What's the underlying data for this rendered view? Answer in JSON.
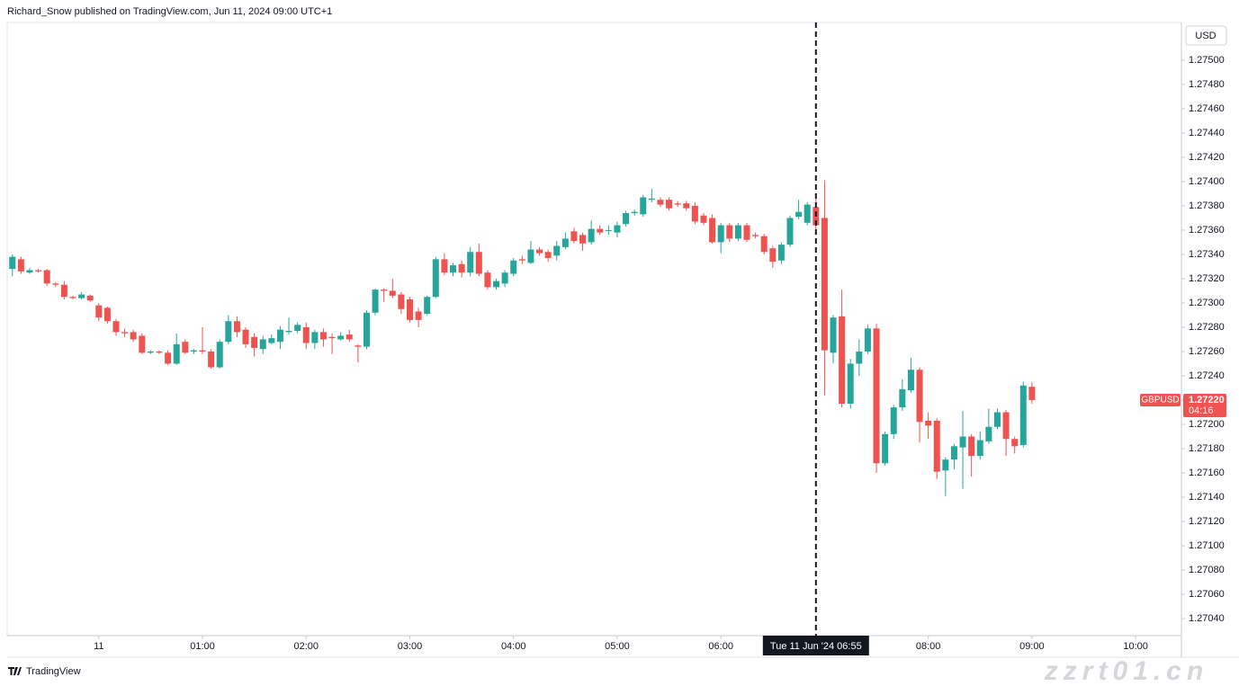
{
  "chart_data": {
    "type": "candlestick",
    "header": "Richard_Snow published on TradingView.com, Jun 11, 2024 09:00 UTC+1",
    "currency": "USD",
    "symbol": "GBPUSD",
    "brand": "TradingView",
    "watermark": "zzrt01.cn",
    "up_color": "#26a69a",
    "down_color": "#ef5350",
    "grid": false,
    "last_price": {
      "value": 1.2722,
      "label": "1.27220"
    },
    "countdown": "04:16",
    "crosshair": {
      "x": 93,
      "label": "Tue 11 Jun '24  06:55"
    },
    "xlim": [
      -0.6,
      135.3
    ],
    "xticks": [
      {
        "value": 10,
        "label": "11"
      },
      {
        "value": 22,
        "label": "01:00"
      },
      {
        "value": 34,
        "label": "02:00"
      },
      {
        "value": 46,
        "label": "03:00"
      },
      {
        "value": 58,
        "label": "04:00"
      },
      {
        "value": 70,
        "label": "05:00"
      },
      {
        "value": 82,
        "label": "06:00"
      },
      {
        "value": 106,
        "label": "08:00"
      },
      {
        "value": 118,
        "label": "09:00"
      },
      {
        "value": 130,
        "label": "10:00"
      }
    ],
    "ylim": [
      1.27026,
      1.27531
    ],
    "yticks": [
      {
        "value": 1.275,
        "label": "1.27500"
      },
      {
        "value": 1.2748,
        "label": "1.27480"
      },
      {
        "value": 1.2746,
        "label": "1.27460"
      },
      {
        "value": 1.2744,
        "label": "1.27440"
      },
      {
        "value": 1.2742,
        "label": "1.27420"
      },
      {
        "value": 1.274,
        "label": "1.27400"
      },
      {
        "value": 1.2738,
        "label": "1.27380"
      },
      {
        "value": 1.2736,
        "label": "1.27360"
      },
      {
        "value": 1.2734,
        "label": "1.27340"
      },
      {
        "value": 1.2732,
        "label": "1.27320"
      },
      {
        "value": 1.273,
        "label": "1.27300"
      },
      {
        "value": 1.2728,
        "label": "1.27280"
      },
      {
        "value": 1.2726,
        "label": "1.27260"
      },
      {
        "value": 1.2724,
        "label": "1.27240"
      },
      {
        "value": 1.2722,
        "label": "1.27220"
      },
      {
        "value": 1.272,
        "label": "1.27200"
      },
      {
        "value": 1.2718,
        "label": "1.27180"
      },
      {
        "value": 1.2716,
        "label": "1.27160"
      },
      {
        "value": 1.2714,
        "label": "1.27140"
      },
      {
        "value": 1.2712,
        "label": "1.27120"
      },
      {
        "value": 1.271,
        "label": "1.27100"
      },
      {
        "value": 1.2708,
        "label": "1.27080"
      },
      {
        "value": 1.2706,
        "label": "1.27060"
      },
      {
        "value": 1.2704,
        "label": "1.27040"
      }
    ],
    "open": [
      1.27328,
      1.27336,
      1.27325,
      1.27327,
      1.27327,
      1.27316,
      1.27315,
      1.27305,
      1.27304,
      1.27306,
      1.27298,
      1.27296,
      1.27285,
      1.27276,
      1.27276,
      1.27273,
      1.27259,
      1.2726,
      1.27259,
      1.2725,
      1.27268,
      1.2726,
      1.27261,
      1.2726,
      1.27247,
      1.27268,
      1.27285,
      1.27278,
      1.27272,
      1.27262,
      1.27267,
      1.27268,
      1.27276,
      1.27277,
      1.2728,
      1.27267,
      1.27276,
      1.27272,
      1.2727,
      1.27274,
      1.27265,
      1.27264,
      1.27292,
      1.27311,
      1.2731,
      1.27307,
      1.27303,
      1.27293,
      1.27291,
      1.27305,
      1.27336,
      1.27325,
      1.27332,
      1.27325,
      1.27342,
      1.27325,
      1.27313,
      1.27316,
      1.27324,
      1.27336,
      1.27333,
      1.27344,
      1.27342,
      1.27339,
      1.27346,
      1.27359,
      1.27356,
      1.2735,
      1.27361,
      1.2736,
      1.27358,
      1.27365,
      1.27374,
      1.27373,
      1.27385,
      1.27385,
      1.27385,
      1.27382,
      1.27382,
      1.2738,
      1.27372,
      1.2737,
      1.2735,
      1.27364,
      1.27353,
      1.27364,
      1.27356,
      1.27355,
      1.27345,
      1.27335,
      1.27348,
      1.27371,
      1.27366,
      1.27379,
      1.2737,
      1.27259,
      1.27289,
      1.27217,
      1.2725,
      1.2726,
      1.27279,
      1.27168,
      1.27192,
      1.27214,
      1.27228,
      1.27245,
      1.27203,
      1.27203,
      1.27162,
      1.27171,
      1.27181,
      1.2719,
      1.27174,
      1.27186,
      1.27198,
      1.2721,
      1.27188,
      1.27183,
      1.27231
    ],
    "high": [
      1.2734,
      1.27338,
      1.27329,
      1.27328,
      1.27328,
      1.27317,
      1.27318,
      1.27306,
      1.27309,
      1.27307,
      1.273,
      1.27297,
      1.27287,
      1.27279,
      1.27278,
      1.27275,
      1.27261,
      1.27261,
      1.27261,
      1.27275,
      1.2727,
      1.27262,
      1.2728,
      1.27262,
      1.2727,
      1.2729,
      1.27289,
      1.2728,
      1.27275,
      1.27273,
      1.27274,
      1.27281,
      1.27288,
      1.27284,
      1.27284,
      1.27278,
      1.27279,
      1.27275,
      1.27276,
      1.27278,
      1.27266,
      1.27294,
      1.27312,
      1.27312,
      1.2732,
      1.27309,
      1.27305,
      1.27296,
      1.27306,
      1.27338,
      1.27341,
      1.27333,
      1.27335,
      1.27346,
      1.27349,
      1.27327,
      1.2732,
      1.27327,
      1.27337,
      1.27339,
      1.27351,
      1.27346,
      1.27344,
      1.27351,
      1.27358,
      1.27362,
      1.27358,
      1.27368,
      1.27364,
      1.27364,
      1.27367,
      1.27376,
      1.27377,
      1.27389,
      1.27394,
      1.27387,
      1.27387,
      1.27384,
      1.27384,
      1.27383,
      1.27374,
      1.27373,
      1.27366,
      1.27366,
      1.27366,
      1.27366,
      1.27358,
      1.27357,
      1.27347,
      1.2735,
      1.27372,
      1.27385,
      1.27383,
      1.2739,
      1.27401,
      1.2729,
      1.27311,
      1.27254,
      1.2727,
      1.27282,
      1.27283,
      1.27194,
      1.27216,
      1.27237,
      1.27255,
      1.27247,
      1.2721,
      1.27205,
      1.27173,
      1.27184,
      1.27211,
      1.27192,
      1.27194,
      1.27213,
      1.27213,
      1.27212,
      1.2719,
      1.27235,
      1.27235
    ],
    "low": [
      1.27322,
      1.27324,
      1.27324,
      1.27325,
      1.27314,
      1.27313,
      1.27303,
      1.27303,
      1.27303,
      1.27301,
      1.27285,
      1.27283,
      1.27273,
      1.27272,
      1.27268,
      1.27258,
      1.27258,
      1.27258,
      1.27249,
      1.27249,
      1.27258,
      1.27258,
      1.27258,
      1.27246,
      1.27246,
      1.27266,
      1.27272,
      1.27263,
      1.27256,
      1.27258,
      1.27266,
      1.27262,
      1.27274,
      1.27275,
      1.27262,
      1.27262,
      1.27264,
      1.27258,
      1.27269,
      1.27268,
      1.27251,
      1.27262,
      1.2729,
      1.27301,
      1.27304,
      1.27291,
      1.27284,
      1.2728,
      1.2729,
      1.27304,
      1.27323,
      1.27322,
      1.27321,
      1.27322,
      1.27322,
      1.27311,
      1.27311,
      1.27313,
      1.27322,
      1.27332,
      1.27332,
      1.27339,
      1.27334,
      1.27335,
      1.27344,
      1.27349,
      1.27343,
      1.27348,
      1.27356,
      1.27356,
      1.27354,
      1.27363,
      1.27372,
      1.27371,
      1.27383,
      1.27379,
      1.27376,
      1.27379,
      1.27376,
      1.27365,
      1.27364,
      1.27349,
      1.27341,
      1.2735,
      1.27351,
      1.2735,
      1.27353,
      1.2734,
      1.27329,
      1.27332,
      1.27346,
      1.27369,
      1.27364,
      1.27356,
      1.27224,
      1.2725,
      1.27214,
      1.27213,
      1.2724,
      1.27258,
      1.2716,
      1.27166,
      1.27188,
      1.27211,
      1.27226,
      1.27185,
      1.27188,
      1.27155,
      1.27141,
      1.27163,
      1.27147,
      1.27157,
      1.27171,
      1.27184,
      1.27196,
      1.27174,
      1.27176,
      1.27181,
      1.27217
    ],
    "close": [
      1.27338,
      1.27326,
      1.27327,
      1.27326,
      1.27316,
      1.27315,
      1.27305,
      1.27304,
      1.27307,
      1.27302,
      1.27288,
      1.27285,
      1.27276,
      1.27275,
      1.2727,
      1.27259,
      1.2726,
      1.27259,
      1.2725,
      1.27266,
      1.27259,
      1.27261,
      1.2726,
      1.27247,
      1.27268,
      1.27285,
      1.27276,
      1.27266,
      1.27263,
      1.2727,
      1.27271,
      1.27278,
      1.27277,
      1.27282,
      1.27267,
      1.27276,
      1.2727,
      1.27271,
      1.27273,
      1.2727,
      1.27264,
      1.27292,
      1.27311,
      1.2731,
      1.27306,
      1.27295,
      1.27286,
      1.27286,
      1.27305,
      1.27336,
      1.27325,
      1.27331,
      1.27325,
      1.27342,
      1.27324,
      1.27313,
      1.27318,
      1.27325,
      1.27335,
      1.27335,
      1.27344,
      1.27341,
      1.27337,
      1.27347,
      1.27353,
      1.27351,
      1.27349,
      1.27361,
      1.27358,
      1.2736,
      1.27364,
      1.27374,
      1.27375,
      1.27387,
      1.27386,
      1.27381,
      1.27378,
      1.27381,
      1.27378,
      1.27367,
      1.27366,
      1.2735,
      1.27364,
      1.27353,
      1.27364,
      1.27352,
      1.27355,
      1.27342,
      1.27334,
      1.27348,
      1.2737,
      1.27375,
      1.27381,
      1.27364,
      1.27261,
      1.27288,
      1.27217,
      1.2725,
      1.2726,
      1.27279,
      1.27168,
      1.27192,
      1.27214,
      1.27229,
      1.27245,
      1.27202,
      1.27199,
      1.27161,
      1.27171,
      1.27182,
      1.2719,
      1.27174,
      1.27187,
      1.27198,
      1.2721,
      1.27188,
      1.27182,
      1.27232,
      1.2722
    ]
  }
}
